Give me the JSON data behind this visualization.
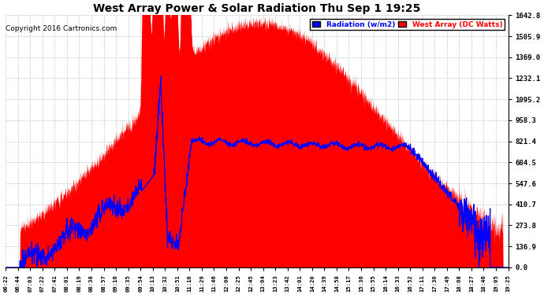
{
  "title": "West Array Power & Solar Radiation Thu Sep 1 19:25",
  "copyright": "Copyright 2016 Cartronics.com",
  "legend_labels": [
    "Radiation (w/m2)",
    "West Array (DC Watts)"
  ],
  "legend_colors": [
    "#0000ff",
    "#ff0000"
  ],
  "yticks": [
    0.0,
    136.9,
    273.8,
    410.7,
    547.6,
    684.5,
    821.4,
    958.3,
    1095.2,
    1232.1,
    1369.0,
    1505.9,
    1642.8
  ],
  "ymax": 1642.8,
  "ymin": 0.0,
  "bg_color": "#ffffff",
  "plot_bg_color": "#ffffff",
  "grid_color": "#c8c8c8",
  "red_fill_color": "#ff0000",
  "blue_line_color": "#0000ff",
  "xtick_labels": [
    "06:22",
    "06:44",
    "07:03",
    "07:22",
    "07:41",
    "08:01",
    "08:19",
    "08:38",
    "08:57",
    "09:16",
    "09:35",
    "09:54",
    "10:13",
    "10:32",
    "10:51",
    "11:10",
    "11:29",
    "11:46",
    "12:06",
    "12:25",
    "12:45",
    "13:04",
    "13:23",
    "13:42",
    "14:01",
    "14:20",
    "14:39",
    "14:58",
    "15:17",
    "15:36",
    "15:55",
    "16:14",
    "16:33",
    "16:52",
    "17:11",
    "17:30",
    "17:49",
    "18:08",
    "18:27",
    "18:46",
    "19:05",
    "19:25"
  ],
  "n_points": 2000,
  "total_minutes": 783
}
